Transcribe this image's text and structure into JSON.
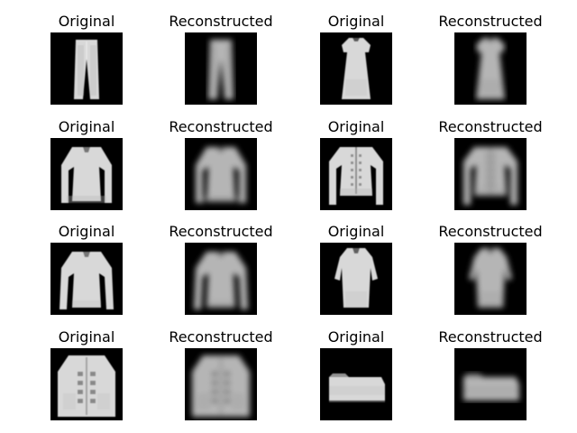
{
  "figure": {
    "panels": [
      {
        "title": "Original",
        "item": "trousers",
        "style": "sharp"
      },
      {
        "title": "Reconstructed",
        "item": "trousers",
        "style": "blurry"
      },
      {
        "title": "Original",
        "item": "dress",
        "style": "sharp"
      },
      {
        "title": "Reconstructed",
        "item": "dress",
        "style": "blurry"
      },
      {
        "title": "Original",
        "item": "long-sleeve-top",
        "style": "sharp"
      },
      {
        "title": "Reconstructed",
        "item": "long-sleeve-top",
        "style": "blurry"
      },
      {
        "title": "Original",
        "item": "cardigan",
        "style": "sharp"
      },
      {
        "title": "Reconstructed",
        "item": "cardigan",
        "style": "blurry"
      },
      {
        "title": "Original",
        "item": "pullover",
        "style": "sharp"
      },
      {
        "title": "Reconstructed",
        "item": "pullover",
        "style": "blurry"
      },
      {
        "title": "Original",
        "item": "tunic-dress",
        "style": "sharp"
      },
      {
        "title": "Reconstructed",
        "item": "tunic-dress",
        "style": "blurry"
      },
      {
        "title": "Original",
        "item": "coat",
        "style": "sharp"
      },
      {
        "title": "Reconstructed",
        "item": "coat",
        "style": "blurry"
      },
      {
        "title": "Original",
        "item": "bag",
        "style": "sharp"
      },
      {
        "title": "Reconstructed",
        "item": "bag",
        "style": "blurry"
      }
    ]
  }
}
